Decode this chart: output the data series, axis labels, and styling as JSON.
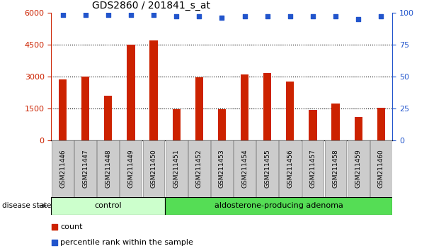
{
  "title": "GDS2860 / 201841_s_at",
  "samples": [
    "GSM211446",
    "GSM211447",
    "GSM211448",
    "GSM211449",
    "GSM211450",
    "GSM211451",
    "GSM211452",
    "GSM211453",
    "GSM211454",
    "GSM211455",
    "GSM211456",
    "GSM211457",
    "GSM211458",
    "GSM211459",
    "GSM211460"
  ],
  "counts": [
    2850,
    3000,
    2100,
    4500,
    4700,
    1480,
    2950,
    1480,
    3100,
    3150,
    2750,
    1450,
    1750,
    1100,
    1550
  ],
  "percentiles": [
    98,
    98,
    98,
    98,
    98,
    97,
    97,
    96,
    97,
    97,
    97,
    97,
    97,
    95,
    97
  ],
  "bar_color": "#cc2200",
  "dot_color": "#2255cc",
  "ylim_left": [
    0,
    6000
  ],
  "ylim_right": [
    0,
    100
  ],
  "yticks_left": [
    0,
    1500,
    3000,
    4500,
    6000
  ],
  "yticks_right": [
    0,
    25,
    50,
    75,
    100
  ],
  "grid_values": [
    1500,
    3000,
    4500
  ],
  "control_samples": 5,
  "control_label": "control",
  "adenoma_label": "aldosterone-producing adenoma",
  "control_color": "#ccffcc",
  "adenoma_color": "#55dd55",
  "disease_state_label": "disease state",
  "legend_count_label": "count",
  "legend_percentile_label": "percentile rank within the sample",
  "tick_label_bg": "#cccccc",
  "background_color": "#ffffff",
  "plot_bg": "#ffffff",
  "bar_width": 0.35
}
